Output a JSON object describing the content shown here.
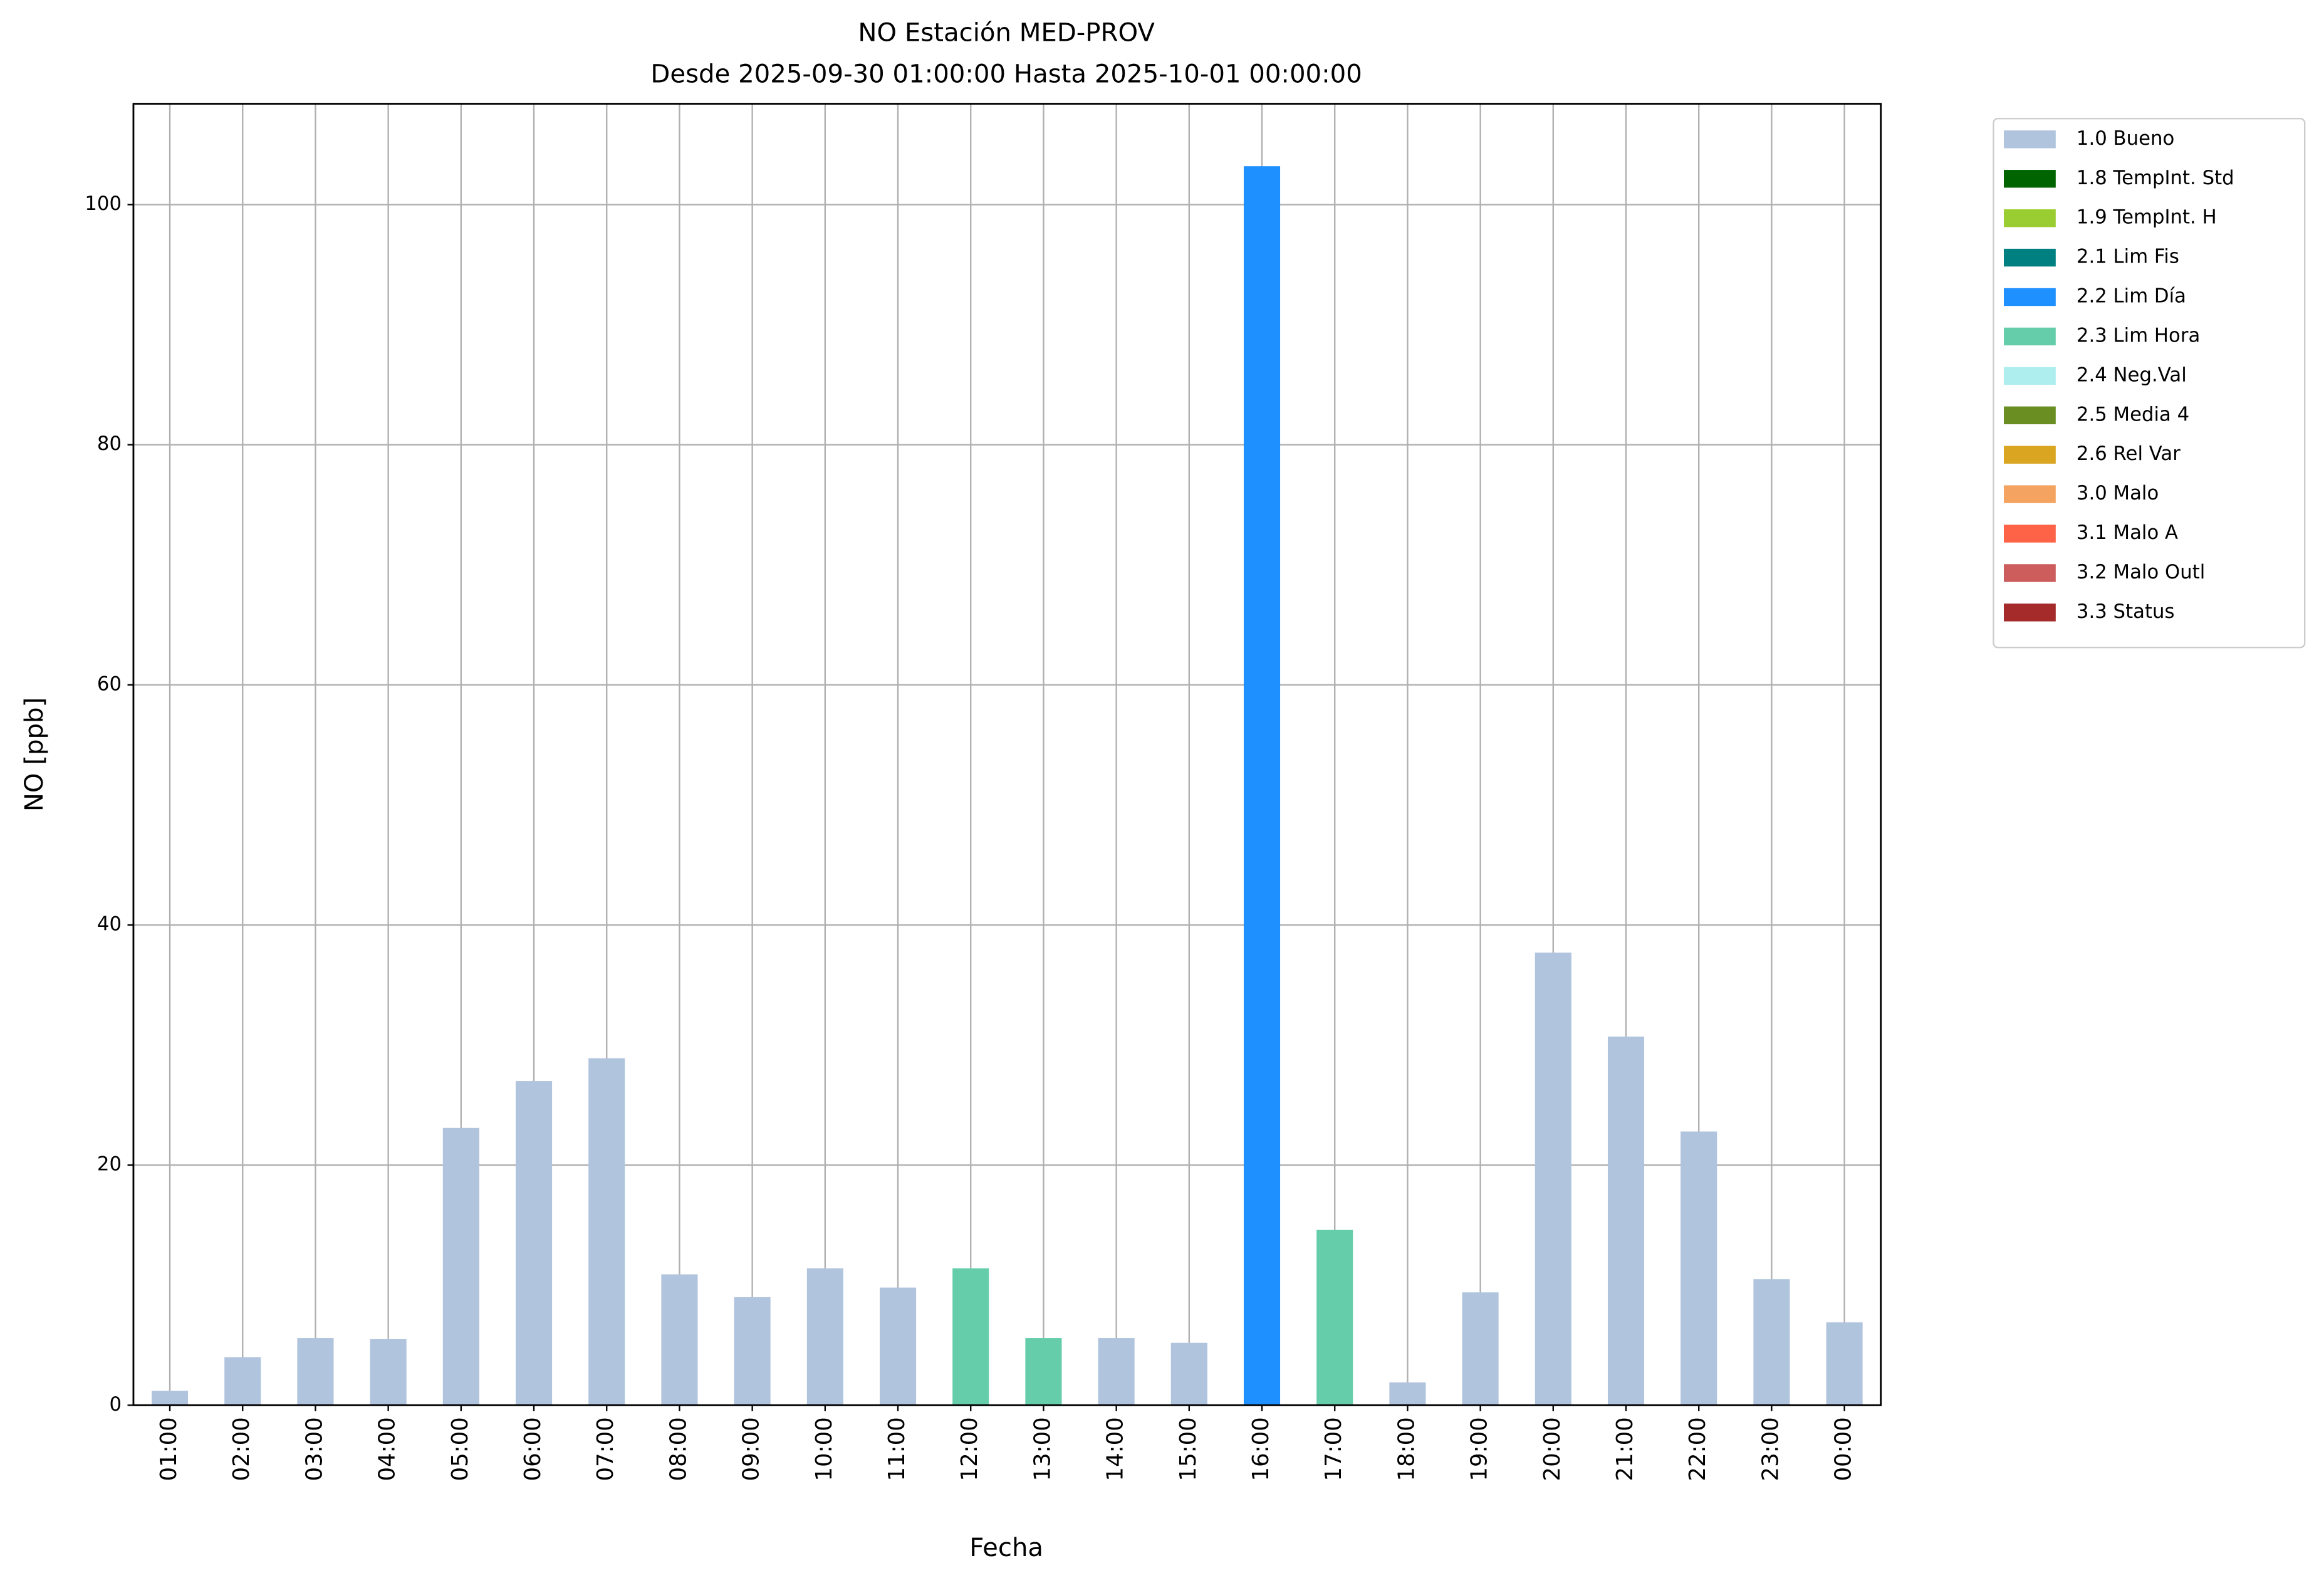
{
  "chart_data": {
    "type": "bar",
    "title": "NO Estación MED-PROV",
    "subtitle": "Desde 2025-09-30 01:00:00 Hasta 2025-10-01 00:00:00",
    "x_label": "Fecha",
    "y_label": "NO [ppb]",
    "categories": [
      "01:00",
      "02:00",
      "03:00",
      "04:00",
      "05:00",
      "06:00",
      "07:00",
      "08:00",
      "09:00",
      "10:00",
      "11:00",
      "12:00",
      "13:00",
      "14:00",
      "15:00",
      "16:00",
      "17:00",
      "18:00",
      "19:00",
      "20:00",
      "21:00",
      "22:00",
      "23:00",
      "00:00"
    ],
    "series": [
      {
        "name": "1.0 Bueno",
        "color": "#b0c4de",
        "values": [
          1.2,
          4.0,
          5.6,
          5.5,
          23.1,
          27.0,
          28.9,
          10.9,
          9.0,
          11.4,
          9.8,
          null,
          null,
          5.6,
          5.2,
          null,
          null,
          1.9,
          9.4,
          37.7,
          30.7,
          22.8,
          10.5,
          6.9
        ]
      },
      {
        "name": "1.8 TempInt. Std",
        "color": "#006400",
        "values": [
          null,
          null,
          null,
          null,
          null,
          null,
          null,
          null,
          null,
          null,
          null,
          null,
          null,
          null,
          null,
          null,
          null,
          null,
          null,
          null,
          null,
          null,
          null,
          null
        ]
      },
      {
        "name": "1.9 TempInt. H",
        "color": "#9acd32",
        "values": [
          null,
          null,
          null,
          null,
          null,
          null,
          null,
          null,
          null,
          null,
          null,
          null,
          null,
          null,
          null,
          null,
          null,
          null,
          null,
          null,
          null,
          null,
          null,
          null
        ]
      },
      {
        "name": "2.1 Lim Fis",
        "color": "#008080",
        "values": [
          null,
          null,
          null,
          null,
          null,
          null,
          null,
          null,
          null,
          null,
          null,
          null,
          null,
          null,
          null,
          null,
          null,
          null,
          null,
          null,
          null,
          null,
          null,
          null
        ]
      },
      {
        "name": "2.2 Lim Día",
        "color": "#1e90ff",
        "values": [
          null,
          null,
          null,
          null,
          null,
          null,
          null,
          null,
          null,
          null,
          null,
          null,
          null,
          null,
          null,
          103.2,
          null,
          null,
          null,
          null,
          null,
          null,
          null,
          null
        ]
      },
      {
        "name": "2.3 Lim Hora",
        "color": "#66cdaa",
        "values": [
          null,
          null,
          null,
          null,
          null,
          null,
          null,
          null,
          null,
          null,
          null,
          11.4,
          5.6,
          null,
          null,
          null,
          14.6,
          null,
          null,
          null,
          null,
          null,
          null,
          null
        ]
      },
      {
        "name": "2.4 Neg.Val",
        "color": "#afeeee",
        "values": [
          null,
          null,
          null,
          null,
          null,
          null,
          null,
          null,
          null,
          null,
          null,
          null,
          null,
          null,
          null,
          null,
          null,
          null,
          null,
          null,
          null,
          null,
          null,
          null
        ]
      },
      {
        "name": "2.5 Media 4",
        "color": "#6b8e23",
        "values": [
          null,
          null,
          null,
          null,
          null,
          null,
          null,
          null,
          null,
          null,
          null,
          null,
          null,
          null,
          null,
          null,
          null,
          null,
          null,
          null,
          null,
          null,
          null,
          null
        ]
      },
      {
        "name": "2.6 Rel Var",
        "color": "#daa520",
        "values": [
          null,
          null,
          null,
          null,
          null,
          null,
          null,
          null,
          null,
          null,
          null,
          null,
          null,
          null,
          null,
          null,
          null,
          null,
          null,
          null,
          null,
          null,
          null,
          null
        ]
      },
      {
        "name": "3.0 Malo",
        "color": "#f4a460",
        "values": [
          null,
          null,
          null,
          null,
          null,
          null,
          null,
          null,
          null,
          null,
          null,
          null,
          null,
          null,
          null,
          null,
          null,
          null,
          null,
          null,
          null,
          null,
          null,
          null
        ]
      },
      {
        "name": "3.1 Malo A",
        "color": "#ff6347",
        "values": [
          null,
          null,
          null,
          null,
          null,
          null,
          null,
          null,
          null,
          null,
          null,
          null,
          null,
          null,
          null,
          null,
          null,
          null,
          null,
          null,
          null,
          null,
          null,
          null
        ]
      },
      {
        "name": "3.2 Malo Outl",
        "color": "#cd5c5c",
        "values": [
          null,
          null,
          null,
          null,
          null,
          null,
          null,
          null,
          null,
          null,
          null,
          null,
          null,
          null,
          null,
          null,
          null,
          null,
          null,
          null,
          null,
          null,
          null,
          null
        ]
      },
      {
        "name": "3.3 Status",
        "color": "#a52a2a",
        "values": [
          null,
          null,
          null,
          null,
          null,
          null,
          null,
          null,
          null,
          null,
          null,
          null,
          null,
          null,
          null,
          null,
          null,
          null,
          null,
          null,
          null,
          null,
          null,
          null
        ]
      }
    ],
    "ylim": [
      0,
      108.4
    ],
    "yticks": [
      0,
      20,
      40,
      60,
      80,
      100
    ],
    "grid": true,
    "legend": "outside-upper-right"
  }
}
